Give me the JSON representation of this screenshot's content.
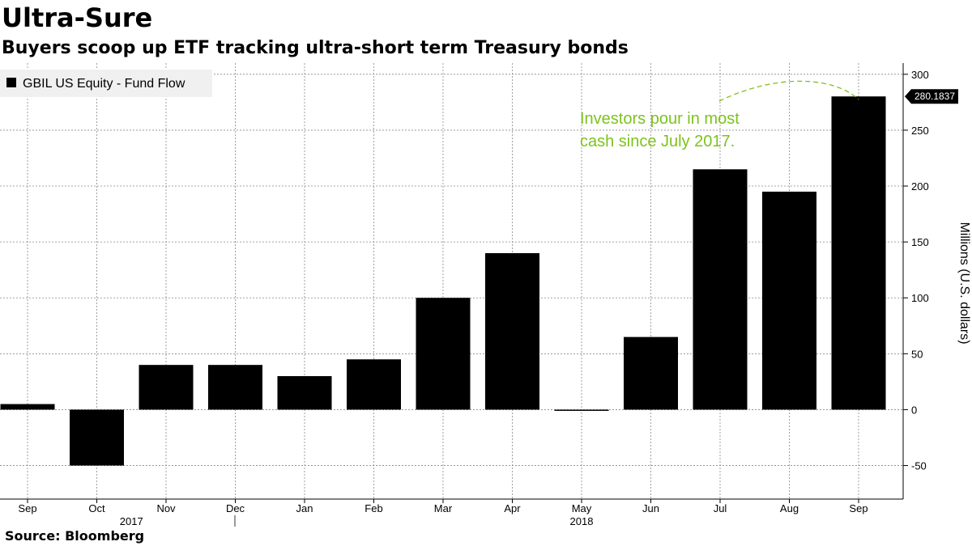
{
  "title": "Ultra-Sure",
  "subtitle": "Buyers scoop up ETF tracking ultra-short term Treasury bonds",
  "source": "Source: Bloomberg",
  "chart_data": {
    "type": "bar",
    "legend": {
      "label": "GBIL US Equity - Fund Flow",
      "placement": "top-left"
    },
    "categories": [
      "Sep",
      "Oct",
      "Nov",
      "Dec",
      "Jan",
      "Feb",
      "Mar",
      "Apr",
      "May",
      "Jun",
      "Jul",
      "Aug",
      "Sep"
    ],
    "year_labels": [
      {
        "label": "2017",
        "after_category": "Oct"
      },
      {
        "label": "2018",
        "after_category": "Apr"
      }
    ],
    "values": [
      5,
      -50,
      40,
      40,
      30,
      45,
      100,
      140,
      0,
      65,
      215,
      195,
      280.1837
    ],
    "series_color": "#000000",
    "last_value_label": "280.1837",
    "ylabel": "Millions (U.S. dollars)",
    "yticks": [
      -50,
      0,
      50,
      100,
      150,
      200,
      250,
      300
    ],
    "ylim": [
      -80,
      310
    ],
    "y_axis_side": "right",
    "grid": true,
    "annotation": {
      "text_lines": [
        "Investors pour in most",
        "cash since July 2017."
      ],
      "color": "#7dc21e"
    }
  }
}
